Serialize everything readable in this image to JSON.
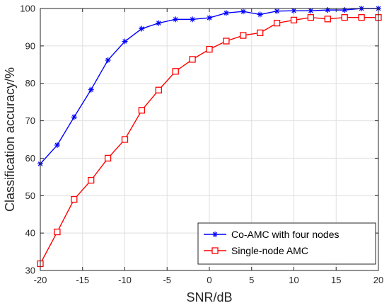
{
  "chart_data": {
    "type": "line",
    "xlabel": "SNR/dB",
    "ylabel": "Classification accuracy/%",
    "xlim": [
      -20,
      20
    ],
    "ylim": [
      30,
      100
    ],
    "xticks": [
      -20,
      -15,
      -10,
      -5,
      0,
      5,
      10,
      15,
      20
    ],
    "yticks": [
      30,
      40,
      50,
      60,
      70,
      80,
      90,
      100
    ],
    "grid": true,
    "legend_position": "bottom-right",
    "x": [
      -20,
      -18,
      -16,
      -14,
      -12,
      -10,
      -8,
      -6,
      -4,
      -2,
      0,
      2,
      4,
      6,
      8,
      10,
      12,
      14,
      16,
      18,
      20
    ],
    "series": [
      {
        "name": "Co-AMC with four nodes",
        "color": "#0000ff",
        "marker": "asterisk",
        "values": [
          58.5,
          63.5,
          71.0,
          78.3,
          86.2,
          91.2,
          94.6,
          96.1,
          97.1,
          97.1,
          97.5,
          98.8,
          99.2,
          98.4,
          99.3,
          99.4,
          99.4,
          99.6,
          99.6,
          100.0,
          100.0
        ]
      },
      {
        "name": "Single-node AMC",
        "color": "#ff0000",
        "marker": "square",
        "values": [
          31.8,
          40.3,
          49.0,
          54.1,
          60.0,
          65.0,
          72.8,
          78.2,
          83.2,
          86.4,
          89.1,
          91.3,
          92.8,
          93.5,
          96.1,
          96.9,
          97.6,
          97.2,
          97.6,
          97.6,
          97.6
        ]
      }
    ]
  }
}
